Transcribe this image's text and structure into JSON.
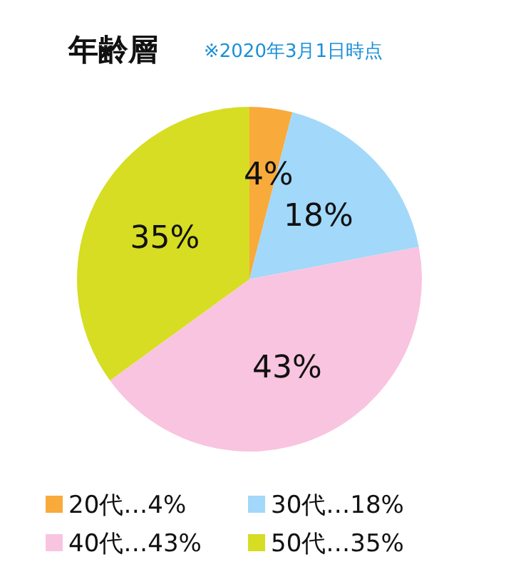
{
  "chart_data": {
    "type": "pie",
    "title": "年齢層",
    "subtitle": "※2020年3月1日時点",
    "categories": [
      "20代…4%",
      "30代…18%",
      "40代…43%",
      "50代…35%"
    ],
    "values": [
      4,
      18,
      43,
      35
    ],
    "value_labels": [
      "4%",
      "18%",
      "43%",
      "35%"
    ],
    "colors": [
      "#f8aa3b",
      "#a2d8fa",
      "#f9c4df",
      "#d6dd22"
    ],
    "legend": "bottom"
  }
}
